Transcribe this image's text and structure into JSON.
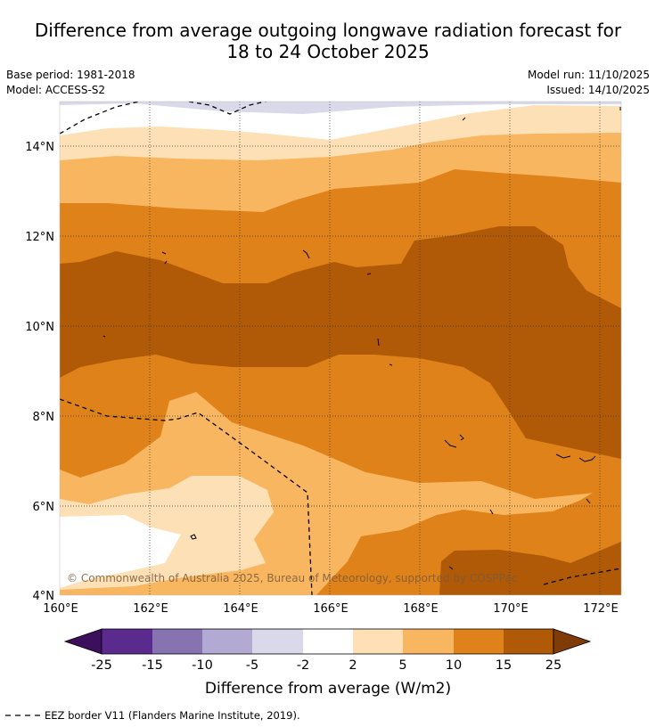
{
  "header": {
    "title_line1": "Difference from average outgoing longwave radiation forecast for",
    "title_line2": "18 to 24 October 2025",
    "base_period": "Base period: 1981-2018",
    "model": "Model: ACCESS-S2",
    "model_run": "Model run: 11/10/2025",
    "issued": "Issued: 14/10/2025"
  },
  "map": {
    "lat_labels": [
      "14°N",
      "12°N",
      "10°N",
      "8°N",
      "6°N",
      "4°N"
    ],
    "lon_labels": [
      "160°E",
      "162°E",
      "164°E",
      "166°E",
      "168°E",
      "170°E",
      "172°E"
    ],
    "copyright": "© Commonwealth of Australia 2025, Bureau of Meteorology, supported by COSPPac"
  },
  "colorbar": {
    "ticks": [
      "-25",
      "-15",
      "-10",
      "-5",
      "-2",
      "2",
      "5",
      "10",
      "15",
      "25"
    ],
    "label": "Difference from average (W/m2)",
    "colors": [
      "#3b0f5c",
      "#5b2a8f",
      "#8773b0",
      "#b3aad4",
      "#d9d9ea",
      "#ffffff",
      "#fde0b5",
      "#f9b660",
      "#e0821a",
      "#b05a08",
      "#7f3b08"
    ]
  },
  "legend": {
    "eez_text": "EEZ border V11 (Flanders Marine Institute, 2019)."
  }
}
